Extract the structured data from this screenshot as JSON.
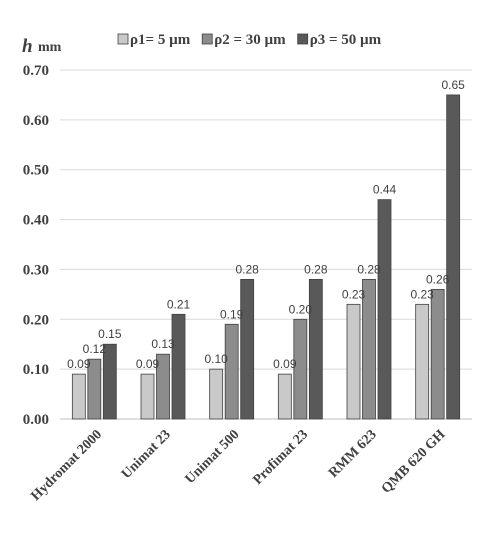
{
  "chart_data": {
    "type": "bar",
    "y_title": {
      "symbol": "h",
      "unit": "mm"
    },
    "categories": [
      "Hydromat 2000",
      "Unimat 23",
      "Unimat 500",
      "Profimat 23",
      "RMM 623",
      "QMB 620 GH"
    ],
    "series": [
      {
        "name": "ρ1= 5 µm",
        "color": "#c9c9c9",
        "values": [
          0.09,
          0.09,
          0.1,
          0.09,
          0.23,
          0.23
        ],
        "labels": [
          "0.09",
          "0.09",
          "0.10",
          "0.09",
          "0.23",
          "0.23"
        ]
      },
      {
        "name": "ρ2 = 30 µm",
        "color": "#8c8c8c",
        "values": [
          0.12,
          0.13,
          0.19,
          0.2,
          0.28,
          0.26
        ],
        "labels": [
          "0.12",
          "0.13",
          "0.19",
          "0.20",
          "0.28",
          "0.26"
        ]
      },
      {
        "name": "ρ3 = 50 µm",
        "color": "#595959",
        "values": [
          0.15,
          0.21,
          0.28,
          0.28,
          0.44,
          0.65
        ],
        "labels": [
          "0.15",
          "0.21",
          "0.28",
          "0.28",
          "0.44",
          "0.65"
        ]
      }
    ],
    "ylim": [
      0,
      0.7
    ],
    "y_ticks": [
      "0.00",
      "0.10",
      "0.20",
      "0.30",
      "0.40",
      "0.50",
      "0.60",
      "0.70"
    ],
    "grid": true,
    "legend_position": "top"
  }
}
